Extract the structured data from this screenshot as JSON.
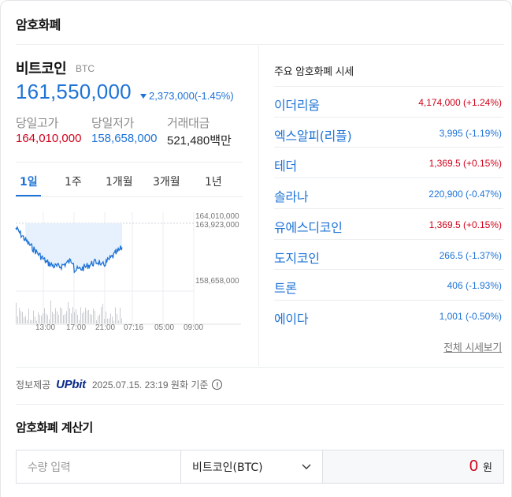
{
  "header": {
    "title": "암호화폐"
  },
  "coin": {
    "name": "비트코인",
    "symbol": "BTC",
    "price": "161,550,000",
    "change": "2,373,000(-1.45%)",
    "stats": [
      {
        "label": "당일고가",
        "value": "164,010,000",
        "color": "#d0021b"
      },
      {
        "label": "당일저가",
        "value": "158,658,000",
        "color": "#1e73d6"
      },
      {
        "label": "거래대금",
        "value": "521,480백만",
        "color": "#222222"
      }
    ]
  },
  "tabs": [
    {
      "label": "1일",
      "active": true
    },
    {
      "label": "1주",
      "active": false
    },
    {
      "label": "1개월",
      "active": false
    },
    {
      "label": "3개월",
      "active": false
    },
    {
      "label": "1년",
      "active": false
    }
  ],
  "chart": {
    "y_labels": [
      "164,010,000",
      "163,923,000",
      "158,658,000"
    ],
    "x_ticks": [
      "13:00",
      "17:00",
      "21:00",
      "07:16",
      "05:00",
      "09:00"
    ]
  },
  "market": {
    "title": "주요 암호화폐 시세",
    "items": [
      {
        "name": "이더리움",
        "value": "4,174,000 (+1.24%)",
        "color": "#d0021b"
      },
      {
        "name": "엑스알피(리플)",
        "value": "3,995 (-1.19%)",
        "color": "#1e73d6"
      },
      {
        "name": "테더",
        "value": "1,369.5 (+0.15%)",
        "color": "#d0021b"
      },
      {
        "name": "솔라나",
        "value": "220,900 (-0.47%)",
        "color": "#1e73d6"
      },
      {
        "name": "유에스디코인",
        "value": "1,369.5 (+0.15%)",
        "color": "#d0021b"
      },
      {
        "name": "도지코인",
        "value": "266.5 (-1.37%)",
        "color": "#1e73d6"
      },
      {
        "name": "트론",
        "value": "406 (-1.93%)",
        "color": "#1e73d6"
      },
      {
        "name": "에이다",
        "value": "1,001 (-0.50%)",
        "color": "#1e73d6"
      }
    ],
    "view_all": "전체 시세보기"
  },
  "source": {
    "label": "정보제공",
    "provider": "UPbit",
    "date": "2025.07.15. 23:19 원화 기준",
    "info_icon": "info-icon"
  },
  "calculator": {
    "title": "암호화폐 계산기",
    "input_placeholder": "수량 입력",
    "selected": "비트코인(BTC)",
    "result": "0",
    "unit": "원"
  },
  "colors": {
    "accent": "#1e73d6",
    "up": "#d0021b",
    "down": "#1e73d6",
    "chart_fill": "#e6f1fd"
  }
}
